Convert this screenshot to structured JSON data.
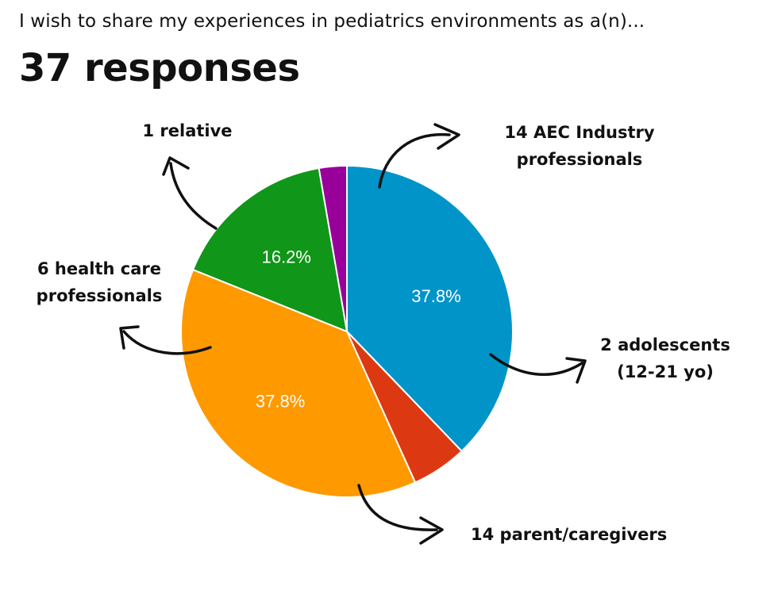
{
  "question": "I wish to share my experiences in pediatrics environments as a(n)...",
  "response_count": "37 responses",
  "chart_data": {
    "type": "pie",
    "title": "I wish to share my experiences in pediatrics environments as a(n)...",
    "subtitle": "37 responses",
    "total": 37,
    "slices": [
      {
        "name": "AEC Industry professionals",
        "count": 14,
        "percent": 37.8,
        "pct_label": "37.8%",
        "color": "#0094c8",
        "annotation": [
          "14 AEC Industry",
          "professionals"
        ]
      },
      {
        "name": "adolescents (12-21 yo)",
        "count": 2,
        "percent": 5.4,
        "pct_label": "",
        "color": "#dc3912",
        "annotation": [
          "2 adolescents",
          "(12-21 yo)"
        ]
      },
      {
        "name": "parent/caregivers",
        "count": 14,
        "percent": 37.8,
        "pct_label": "37.8%",
        "color": "#ff9900",
        "annotation": [
          "14 parent/caregivers"
        ]
      },
      {
        "name": "health care professionals",
        "count": 6,
        "percent": 16.2,
        "pct_label": "16.2%",
        "color": "#109618",
        "annotation": [
          "6 health care",
          "professionals"
        ]
      },
      {
        "name": "relative",
        "count": 1,
        "percent": 2.7,
        "pct_label": "",
        "color": "#990099",
        "annotation": [
          "1 relative"
        ]
      }
    ]
  }
}
